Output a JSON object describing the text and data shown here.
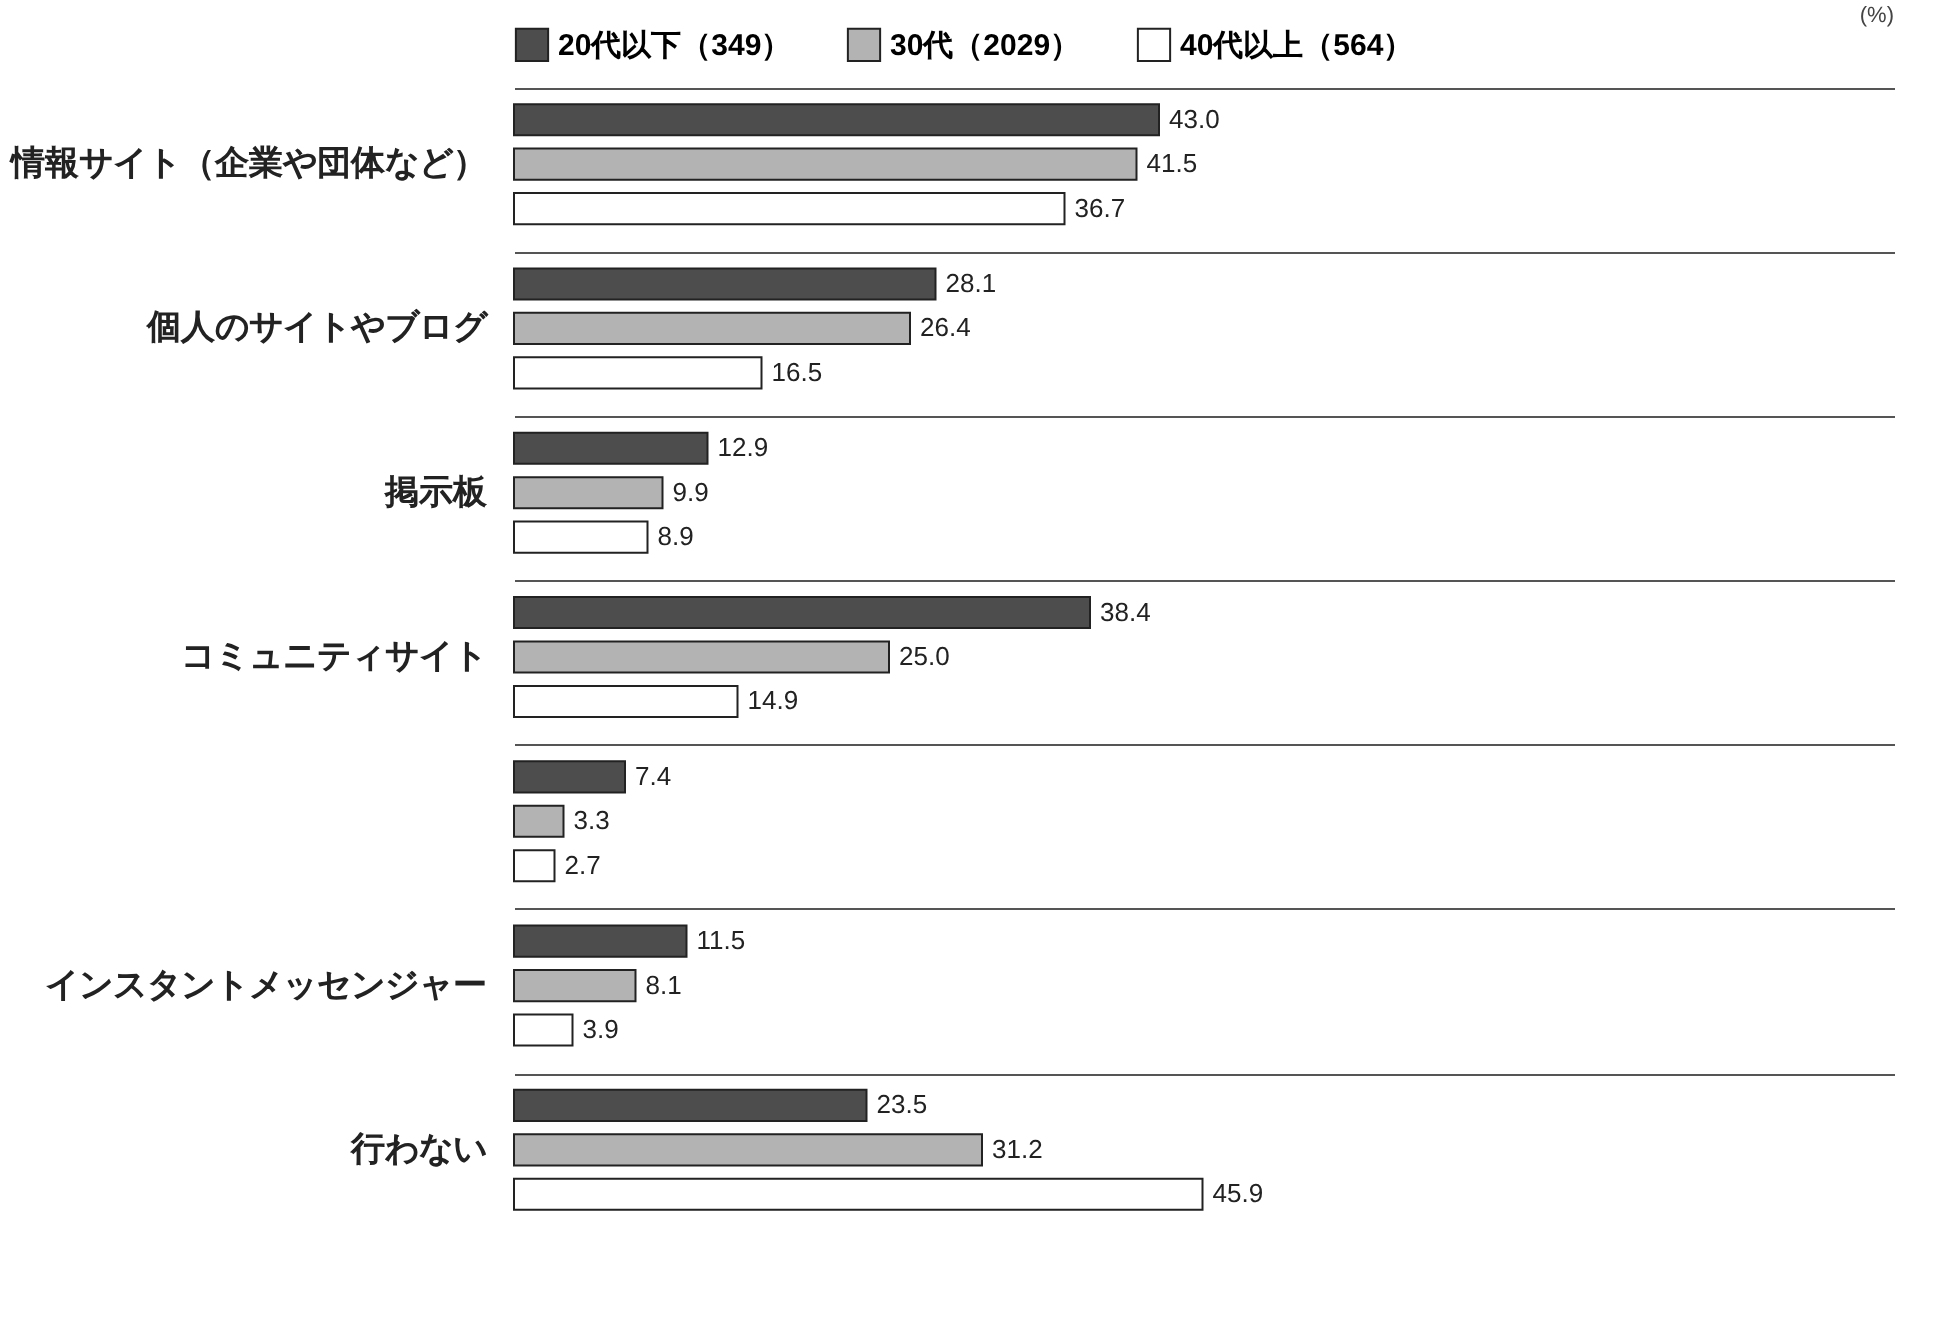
{
  "chart_data": {
    "type": "bar",
    "orientation": "horizontal",
    "categories": [
      "情報サイト（企業や団体など）",
      "個人のサイトやブログ",
      "掲示板",
      "コミュニティサイト",
      null,
      "インスタントメッセンジャー",
      "行わない"
    ],
    "series": [
      {
        "name": "20代以下（349）",
        "color": "#4d4d4d",
        "values": [
          43.0,
          28.1,
          12.9,
          38.4,
          7.4,
          11.5,
          23.5
        ],
        "value_labels": [
          "43.0",
          "28.1",
          "12.9",
          "38.4",
          "7.4",
          "11.5",
          "23.5"
        ]
      },
      {
        "name": "30代（2029）",
        "color": "#b3b3b3",
        "values": [
          41.5,
          26.4,
          9.9,
          25.0,
          3.3,
          8.1,
          31.2
        ],
        "value_labels": [
          "41.5",
          "26.4",
          "9.9",
          "25.0",
          "3.3",
          "8.1",
          "31.2"
        ]
      },
      {
        "name": "40代以上（564）",
        "color": "#ffffff",
        "values": [
          36.7,
          16.5,
          8.9,
          14.9,
          2.7,
          3.9,
          45.9
        ],
        "value_labels": [
          "36.7",
          "16.5",
          "8.9",
          "14.9",
          "2.7",
          "3.9",
          "45.9"
        ]
      }
    ],
    "xlim": [
      0,
      92
    ],
    "tick_labels": "y",
    "legend": "top",
    "grid": "y",
    "annotations": [
      "(%)"
    ]
  }
}
